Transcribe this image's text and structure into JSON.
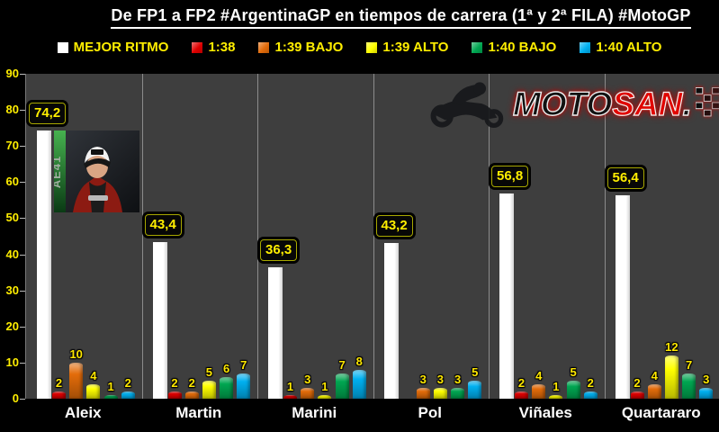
{
  "title": "De FP1 a FP2 #ArgentinaGP en tiempos de carrera (1ª y 2ª FILA) #MotoGP",
  "logo": {
    "moto": "MOTO",
    "san": "SAN",
    "dot": "."
  },
  "photo": {
    "code": "AE41"
  },
  "chart_data": {
    "type": "bar",
    "title": "De FP1 a FP2 #ArgentinaGP en tiempos de carrera (1ª y 2ª FILA) #MotoGP",
    "categories": [
      "Aleix",
      "Martin",
      "Marini",
      "Pol",
      "Viñales",
      "Quartararo"
    ],
    "series": [
      {
        "name": "MEJOR RITMO",
        "color": "#ffffff",
        "values": [
          74.2,
          43.4,
          36.3,
          43.2,
          56.8,
          56.4
        ],
        "value_labels": [
          "74,2",
          "43,4",
          "36,3",
          "43,2",
          "56,8",
          "56,4"
        ]
      },
      {
        "name": "1:38",
        "color": "#e00000",
        "values": [
          2,
          2,
          1,
          0,
          2,
          2
        ]
      },
      {
        "name": "1:39 BAJO",
        "color": "#e36c0a",
        "values": [
          10,
          2,
          3,
          3,
          4,
          4
        ]
      },
      {
        "name": "1:39 ALTO",
        "color": "#ffff00",
        "values": [
          4,
          5,
          1,
          3,
          1,
          12
        ]
      },
      {
        "name": "1:40 BAJO",
        "color": "#00a651",
        "values": [
          1,
          6,
          7,
          3,
          5,
          7
        ]
      },
      {
        "name": "1:40 ALTO",
        "color": "#00b0f0",
        "values": [
          2,
          7,
          8,
          5,
          2,
          3
        ]
      }
    ],
    "ylim": [
      0,
      90
    ],
    "yticks": [
      0,
      10,
      20,
      30,
      40,
      50,
      60,
      70,
      80,
      90
    ],
    "grid": "vertical category separators only",
    "legend_position": "top",
    "background": "#3e3e3e",
    "page_background": "#000000",
    "label_color": "#ffee00"
  }
}
